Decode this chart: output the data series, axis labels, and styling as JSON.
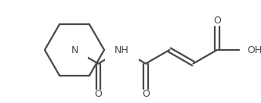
{
  "background_color": "#ffffff",
  "line_color": "#4a4a4a",
  "text_color": "#4a4a4a",
  "line_width": 1.6,
  "fig_width": 3.33,
  "fig_height": 1.32,
  "dpi": 100,
  "xlim": [
    0,
    333
  ],
  "ylim": [
    0,
    132
  ]
}
